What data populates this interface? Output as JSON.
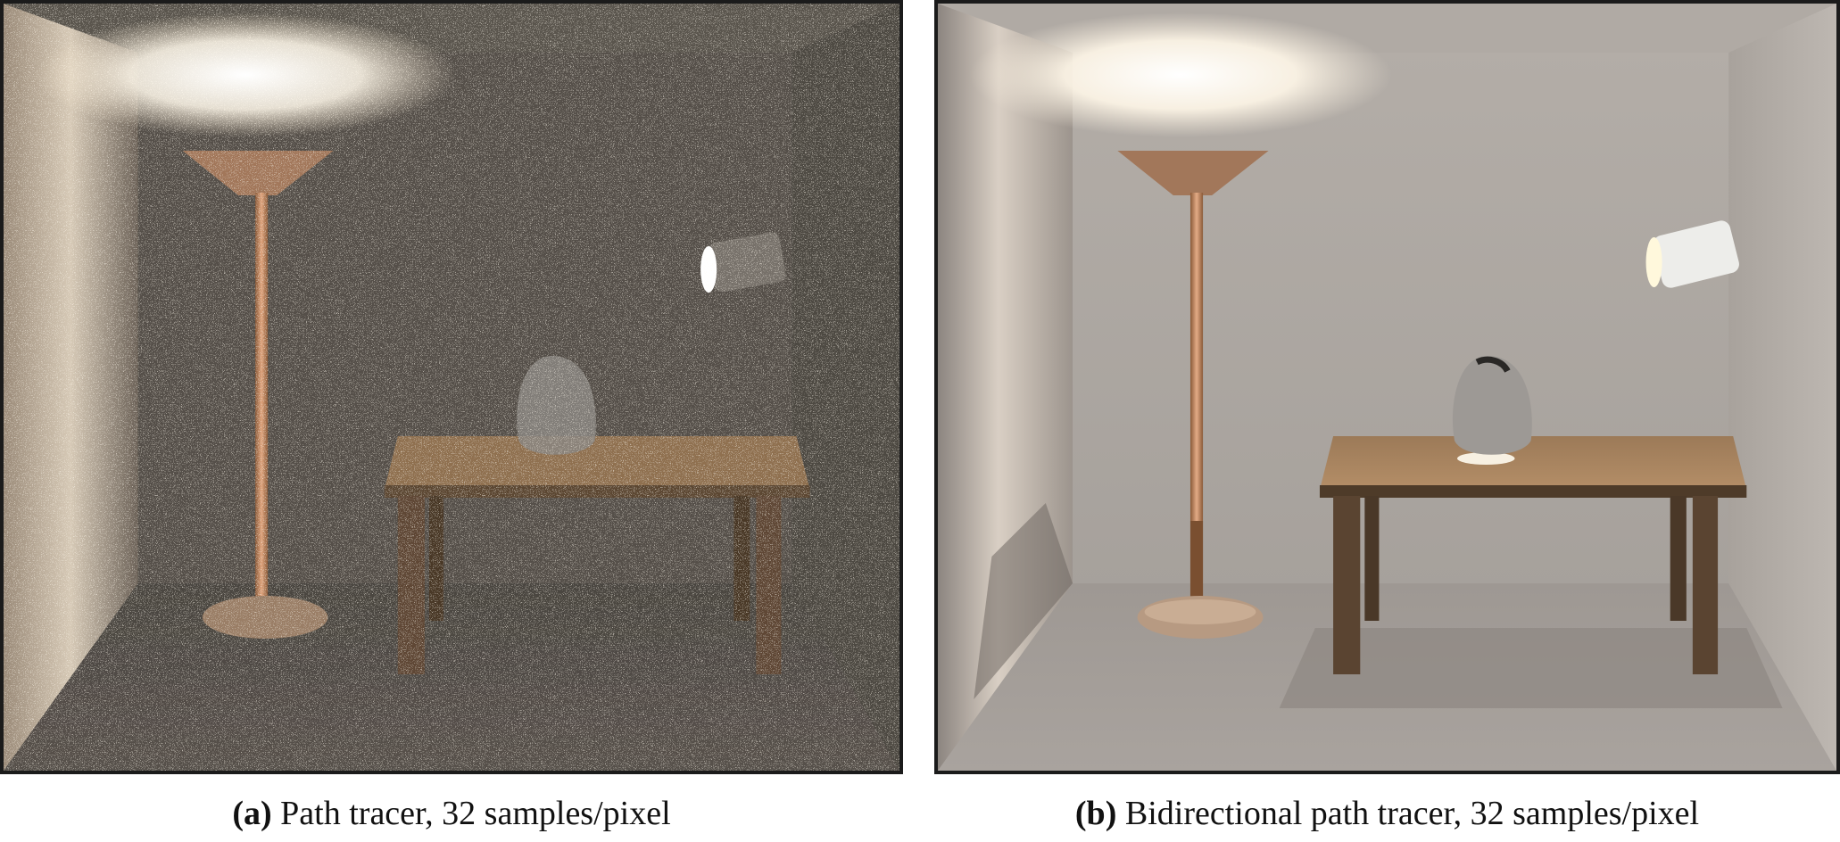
{
  "figure": {
    "panel_a": {
      "label": "(a)",
      "caption": "Path tracer, 32 samples/pixel",
      "image_icon": "noisy-room-render-icon"
    },
    "panel_b": {
      "label": "(b)",
      "caption": "Bidirectional path tracer, 32 samples/pixel",
      "image_icon": "smooth-room-render-icon"
    }
  },
  "colors": {
    "frame": "#1b1b1b",
    "wall_a": "#565049",
    "wall_b": "#a7a19d",
    "table_wood": "#8a6a48",
    "lamp_copper": "#b07a52",
    "light_glow": "#fffaf0"
  }
}
